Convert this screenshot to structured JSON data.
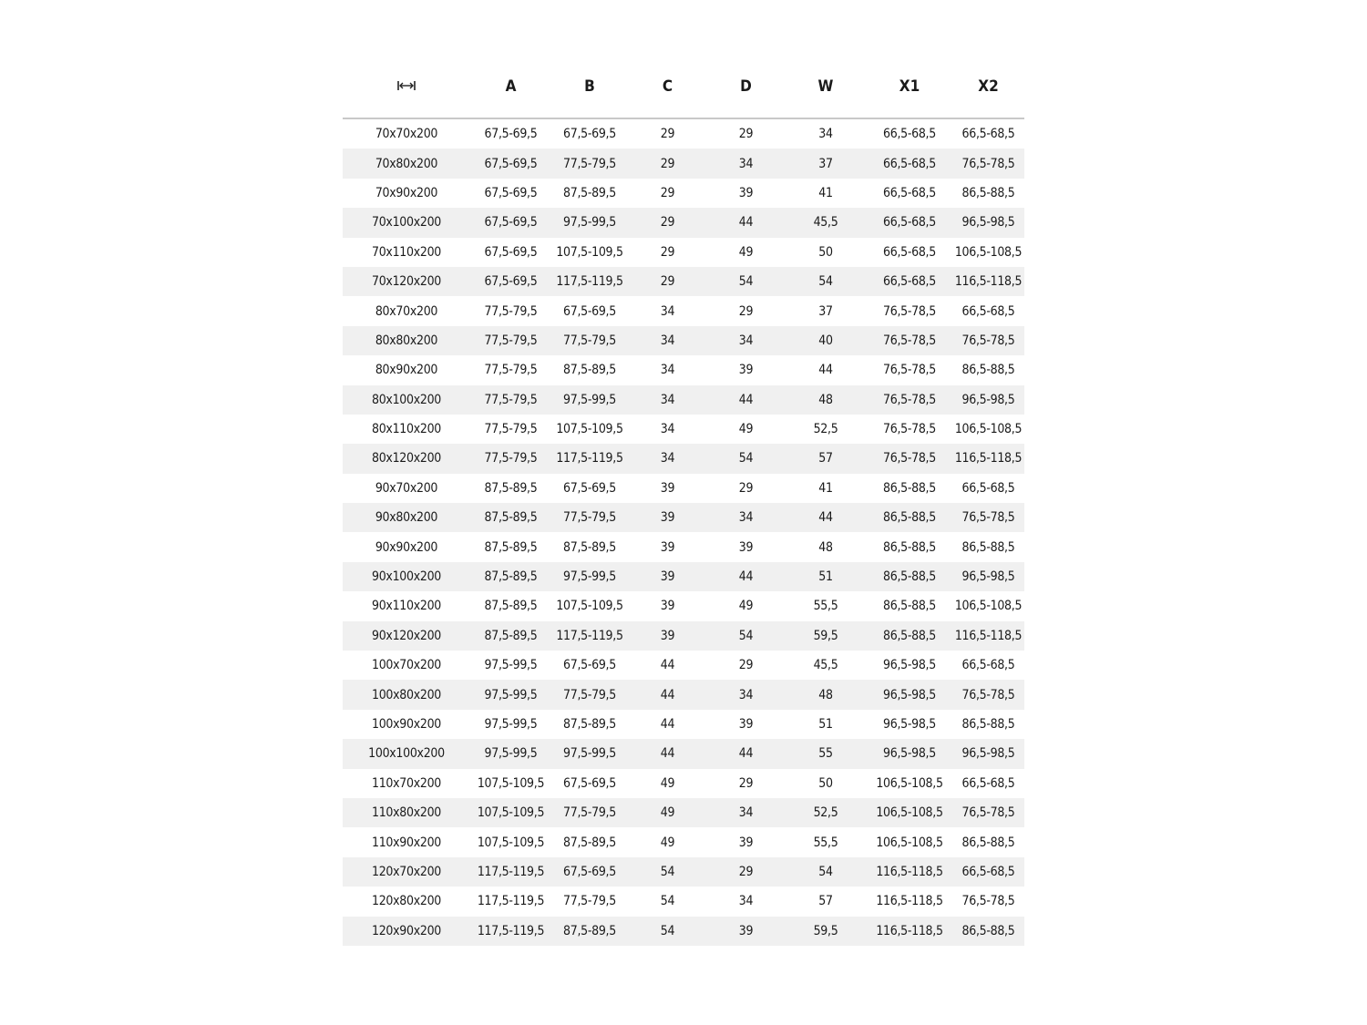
{
  "table": {
    "header_icon": "width-arrows-icon",
    "headers": [
      "A",
      "B",
      "C",
      "D",
      "W",
      "X1",
      "X2"
    ],
    "rows": [
      [
        "70x70x200",
        "67,5-69,5",
        "67,5-69,5",
        "29",
        "29",
        "34",
        "66,5-68,5",
        "66,5-68,5"
      ],
      [
        "70x80x200",
        "67,5-69,5",
        "77,5-79,5",
        "29",
        "34",
        "37",
        "66,5-68,5",
        "76,5-78,5"
      ],
      [
        "70x90x200",
        "67,5-69,5",
        "87,5-89,5",
        "29",
        "39",
        "41",
        "66,5-68,5",
        "86,5-88,5"
      ],
      [
        "70x100x200",
        "67,5-69,5",
        "97,5-99,5",
        "29",
        "44",
        "45,5",
        "66,5-68,5",
        "96,5-98,5"
      ],
      [
        "70x110x200",
        "67,5-69,5",
        "107,5-109,5",
        "29",
        "49",
        "50",
        "66,5-68,5",
        "106,5-108,5"
      ],
      [
        "70x120x200",
        "67,5-69,5",
        "117,5-119,5",
        "29",
        "54",
        "54",
        "66,5-68,5",
        "116,5-118,5"
      ],
      [
        "80x70x200",
        "77,5-79,5",
        "67,5-69,5",
        "34",
        "29",
        "37",
        "76,5-78,5",
        "66,5-68,5"
      ],
      [
        "80x80x200",
        "77,5-79,5",
        "77,5-79,5",
        "34",
        "34",
        "40",
        "76,5-78,5",
        "76,5-78,5"
      ],
      [
        "80x90x200",
        "77,5-79,5",
        "87,5-89,5",
        "34",
        "39",
        "44",
        "76,5-78,5",
        "86,5-88,5"
      ],
      [
        "80x100x200",
        "77,5-79,5",
        "97,5-99,5",
        "34",
        "44",
        "48",
        "76,5-78,5",
        "96,5-98,5"
      ],
      [
        "80x110x200",
        "77,5-79,5",
        "107,5-109,5",
        "34",
        "49",
        "52,5",
        "76,5-78,5",
        "106,5-108,5"
      ],
      [
        "80x120x200",
        "77,5-79,5",
        "117,5-119,5",
        "34",
        "54",
        "57",
        "76,5-78,5",
        "116,5-118,5"
      ],
      [
        "90x70x200",
        "87,5-89,5",
        "67,5-69,5",
        "39",
        "29",
        "41",
        "86,5-88,5",
        "66,5-68,5"
      ],
      [
        "90x80x200",
        "87,5-89,5",
        "77,5-79,5",
        "39",
        "34",
        "44",
        "86,5-88,5",
        "76,5-78,5"
      ],
      [
        "90x90x200",
        "87,5-89,5",
        "87,5-89,5",
        "39",
        "39",
        "48",
        "86,5-88,5",
        "86,5-88,5"
      ],
      [
        "90x100x200",
        "87,5-89,5",
        "97,5-99,5",
        "39",
        "44",
        "51",
        "86,5-88,5",
        "96,5-98,5"
      ],
      [
        "90x110x200",
        "87,5-89,5",
        "107,5-109,5",
        "39",
        "49",
        "55,5",
        "86,5-88,5",
        "106,5-108,5"
      ],
      [
        "90x120x200",
        "87,5-89,5",
        "117,5-119,5",
        "39",
        "54",
        "59,5",
        "86,5-88,5",
        "116,5-118,5"
      ],
      [
        "100x70x200",
        "97,5-99,5",
        "67,5-69,5",
        "44",
        "29",
        "45,5",
        "96,5-98,5",
        "66,5-68,5"
      ],
      [
        "100x80x200",
        "97,5-99,5",
        "77,5-79,5",
        "44",
        "34",
        "48",
        "96,5-98,5",
        "76,5-78,5"
      ],
      [
        "100x90x200",
        "97,5-99,5",
        "87,5-89,5",
        "44",
        "39",
        "51",
        "96,5-98,5",
        "86,5-88,5"
      ],
      [
        "100x100x200",
        "97,5-99,5",
        "97,5-99,5",
        "44",
        "44",
        "55",
        "96,5-98,5",
        "96,5-98,5"
      ],
      [
        "110x70x200",
        "107,5-109,5",
        "67,5-69,5",
        "49",
        "29",
        "50",
        "106,5-108,5",
        "66,5-68,5"
      ],
      [
        "110x80x200",
        "107,5-109,5",
        "77,5-79,5",
        "49",
        "34",
        "52,5",
        "106,5-108,5",
        "76,5-78,5"
      ],
      [
        "110x90x200",
        "107,5-109,5",
        "87,5-89,5",
        "49",
        "39",
        "55,5",
        "106,5-108,5",
        "86,5-88,5"
      ],
      [
        "120x70x200",
        "117,5-119,5",
        "67,5-69,5",
        "54",
        "29",
        "54",
        "116,5-118,5",
        "66,5-68,5"
      ],
      [
        "120x80x200",
        "117,5-119,5",
        "77,5-79,5",
        "54",
        "34",
        "57",
        "116,5-118,5",
        "76,5-78,5"
      ],
      [
        "120x90x200",
        "117,5-119,5",
        "87,5-89,5",
        "54",
        "39",
        "59,5",
        "116,5-118,5",
        "86,5-88,5"
      ]
    ]
  }
}
